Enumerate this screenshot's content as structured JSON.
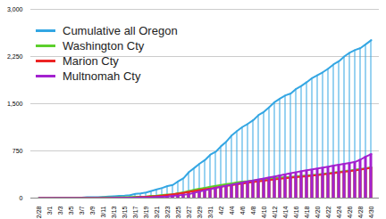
{
  "chart_data": {
    "type": "bar",
    "legend": "upper left",
    "grid": true,
    "categories": [
      "2/28",
      null,
      "3/1",
      null,
      "3/3",
      null,
      "3/5",
      null,
      "3/7",
      null,
      "3/9",
      null,
      "3/11",
      null,
      "3/13",
      null,
      "3/15",
      null,
      "3/17",
      null,
      "3/19",
      null,
      "3/21",
      null,
      "3/23",
      null,
      "3/25",
      null,
      "3/27",
      null,
      "3/29",
      null,
      "3/31",
      null,
      "4/2",
      null,
      "4/4",
      null,
      "4/6",
      null,
      "4/8",
      null,
      "4/10",
      null,
      "4/12",
      null,
      "4/14",
      null,
      "4/16",
      null,
      "4/18",
      null,
      "4/20",
      null,
      "4/22",
      null,
      "4/24",
      null,
      "4/26",
      null,
      "4/28",
      null,
      "4/30"
    ],
    "series": [
      {
        "name": "Cumulative all Oregon",
        "color": "#33a6e3",
        "values": [
          1,
          1,
          1,
          3,
          3,
          3,
          3,
          3,
          7,
          14,
          14,
          15,
          19,
          24,
          30,
          36,
          39,
          47,
          66,
          75,
          88,
          114,
          137,
          161,
          191,
          209,
          266,
          316,
          414,
          479,
          548,
          606,
          690,
          736,
          826,
          899,
          999,
          1068,
          1132,
          1181,
          1239,
          1321,
          1371,
          1447,
          1527,
          1584,
          1633,
          1663,
          1736,
          1785,
          1844,
          1910,
          1956,
          2002,
          2059,
          2127,
          2177,
          2253,
          2311,
          2354,
          2385,
          2446,
          2510
        ]
      },
      {
        "name": "Washington Cty",
        "color": "#5ccf2c",
        "values": [
          1,
          1,
          1,
          1,
          1,
          1,
          1,
          1,
          3,
          6,
          7,
          7,
          9,
          10,
          12,
          14,
          15,
          17,
          20,
          22,
          26,
          34,
          40,
          48,
          56,
          60,
          78,
          92,
          114,
          133,
          150,
          164,
          180,
          196,
          210,
          222,
          234,
          250,
          262,
          270,
          280,
          290,
          300,
          310,
          318,
          326,
          332,
          336,
          346,
          354,
          360,
          368,
          376,
          386,
          396,
          406,
          416,
          430,
          440,
          452,
          462,
          474,
          492
        ]
      },
      {
        "name": "Marion Cty",
        "color": "#ec2424",
        "values": [
          0,
          0,
          0,
          0,
          0,
          0,
          0,
          0,
          0,
          0,
          0,
          0,
          1,
          1,
          2,
          3,
          5,
          8,
          12,
          16,
          20,
          26,
          32,
          40,
          50,
          60,
          72,
          84,
          100,
          114,
          128,
          140,
          152,
          166,
          180,
          194,
          206,
          218,
          230,
          244,
          256,
          266,
          276,
          286,
          296,
          306,
          316,
          324,
          332,
          340,
          348,
          356,
          366,
          376,
          386,
          396,
          406,
          416,
          428,
          440,
          452,
          466,
          480
        ]
      },
      {
        "name": "Multnomah Cty",
        "color": "#a321cf",
        "values": [
          0,
          0,
          0,
          0,
          0,
          0,
          0,
          0,
          0,
          0,
          1,
          1,
          1,
          1,
          2,
          3,
          4,
          6,
          8,
          10,
          12,
          14,
          18,
          22,
          26,
          34,
          42,
          52,
          62,
          84,
          104,
          124,
          142,
          162,
          180,
          198,
          214,
          230,
          248,
          264,
          280,
          296,
          312,
          328,
          344,
          362,
          378,
          396,
          412,
          428,
          442,
          456,
          472,
          486,
          500,
          516,
          532,
          546,
          560,
          576,
          612,
          660,
          700
        ]
      }
    ],
    "ylim": [
      0,
      3000
    ],
    "yticks": [
      0,
      750,
      1500,
      2250,
      3000
    ]
  }
}
